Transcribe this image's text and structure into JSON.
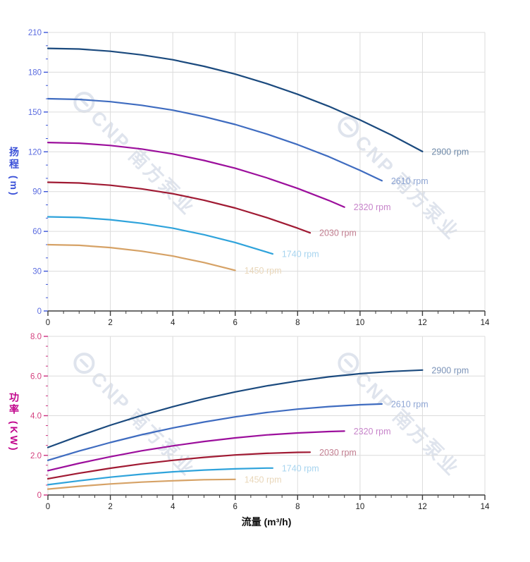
{
  "watermark": {
    "text": "CNP 南方泵业"
  },
  "chart_data": [
    {
      "id": "head",
      "type": "line",
      "title": "",
      "xlabel": "",
      "ylabel": "扬程 (m)",
      "xlim": [
        0,
        14
      ],
      "ylim": [
        0,
        210
      ],
      "grid": true,
      "legend_position": "curve-end-labels",
      "x_tick_values": [
        0,
        2,
        4,
        6,
        8,
        10,
        12,
        14
      ],
      "x_tick_labels": [
        "0",
        "2",
        "4",
        "6",
        "8",
        "10",
        "12",
        "14"
      ],
      "x_minor_step": 0.5,
      "y_tick_values": [
        0,
        30,
        60,
        90,
        120,
        150,
        180,
        210
      ],
      "y_tick_labels": [
        "0",
        "30",
        "60",
        "90",
        "120",
        "150",
        "180",
        "210"
      ],
      "y_minor_step": 10,
      "y_axis_color": "#3c55d8",
      "y_tick_label_color": "#5b6ce0",
      "x_axis_color": "#3d3d3d",
      "x_tick_label_color": "#1f1f1f",
      "grid_color": "#dcdcdc",
      "series": [
        {
          "name": "2900 rpm",
          "color": "#1b4a7e",
          "label_color": "#6e89a8",
          "x": [
            0,
            1,
            2,
            3,
            4,
            5,
            6,
            7,
            8,
            9,
            10,
            11,
            12
          ],
          "y": [
            198,
            197.5,
            195.8,
            193.1,
            189.4,
            184.5,
            178.6,
            171.5,
            163.4,
            154.3,
            144,
            132.7,
            120.2
          ]
        },
        {
          "name": "2610 rpm",
          "color": "#3f6cc0",
          "label_color": "#8fa6d4",
          "x": [
            0,
            1,
            2,
            3,
            4,
            5,
            6,
            7,
            8,
            9,
            10,
            10.7
          ],
          "y": [
            160,
            159.5,
            157.8,
            155.1,
            151.4,
            146.5,
            140.6,
            133.5,
            125.4,
            116.3,
            106,
            98.2
          ]
        },
        {
          "name": "2320 rpm",
          "color": "#9c0f9c",
          "label_color": "#c784ca",
          "x": [
            0,
            1,
            2,
            3,
            4,
            5,
            6,
            7,
            8,
            9,
            9.5
          ],
          "y": [
            127,
            126.5,
            124.8,
            122.1,
            118.4,
            113.5,
            107.6,
            100.5,
            92.4,
            83.3,
            78.3
          ]
        },
        {
          "name": "2030 rpm",
          "color": "#a01a33",
          "label_color": "#c27e90",
          "x": [
            0,
            1,
            2,
            3,
            4,
            5,
            6,
            7,
            8,
            8.4
          ],
          "y": [
            97,
            96.5,
            94.8,
            92.1,
            88.4,
            83.5,
            77.6,
            70.5,
            62.4,
            58.9
          ]
        },
        {
          "name": "1740 rpm",
          "color": "#2fa3db",
          "label_color": "#a7d4ef",
          "x": [
            0,
            1,
            2,
            3,
            4,
            5,
            6,
            7,
            7.2
          ],
          "y": [
            71,
            70.5,
            68.8,
            66.1,
            62.4,
            57.5,
            51.6,
            44.5,
            43
          ]
        },
        {
          "name": "1450 rpm",
          "color": "#d6a266",
          "label_color": "#e9d7ba",
          "x": [
            0,
            1,
            2,
            3,
            4,
            5,
            6
          ],
          "y": [
            50,
            49.5,
            47.8,
            45.1,
            41.4,
            36.5,
            30.6
          ]
        }
      ]
    },
    {
      "id": "power",
      "type": "line",
      "title": "",
      "xlabel": "流量 (m³/h)",
      "ylabel": "功率 (KW)",
      "xlim": [
        0,
        14
      ],
      "ylim": [
        0,
        8
      ],
      "grid": true,
      "legend_position": "curve-end-labels",
      "x_tick_values": [
        0,
        2,
        4,
        6,
        8,
        10,
        12,
        14
      ],
      "x_tick_labels": [
        "0",
        "2",
        "4",
        "6",
        "8",
        "10",
        "12",
        "14"
      ],
      "x_minor_step": 0.5,
      "y_tick_values": [
        0,
        2,
        4,
        6,
        8
      ],
      "y_tick_labels": [
        "0",
        "2.0",
        "4.0",
        "6.0",
        "8.0"
      ],
      "y_minor_step": 0.5,
      "y_axis_color": "#cc2f7f",
      "y_tick_label_color": "#d4417f",
      "x_axis_color": "#3d3d3d",
      "x_tick_label_color": "#1f1f1f",
      "grid_color": "#dcdcdc",
      "series": [
        {
          "name": "2900 rpm",
          "color": "#1b4a7e",
          "label_color": "#7b93b8",
          "x": [
            0,
            1,
            2,
            3,
            4,
            5,
            6,
            7,
            8,
            9,
            10,
            11,
            12
          ],
          "y": [
            2.4,
            2.98,
            3.52,
            4.01,
            4.45,
            4.85,
            5.2,
            5.5,
            5.75,
            5.96,
            6.12,
            6.23,
            6.3
          ]
        },
        {
          "name": "2610 rpm",
          "color": "#3f6cc0",
          "label_color": "#8fa6d4",
          "x": [
            0,
            1,
            2,
            3,
            4,
            5,
            6,
            7,
            8,
            9,
            10,
            10.7
          ],
          "y": [
            1.75,
            2.22,
            2.65,
            3.04,
            3.38,
            3.68,
            3.94,
            4.16,
            4.33,
            4.46,
            4.55,
            4.59
          ]
        },
        {
          "name": "2320 rpm",
          "color": "#9c0f9c",
          "label_color": "#c784ca",
          "x": [
            0,
            1,
            2,
            3,
            4,
            5,
            6,
            7,
            8,
            9,
            9.5
          ],
          "y": [
            1.23,
            1.6,
            1.93,
            2.23,
            2.48,
            2.7,
            2.88,
            3.03,
            3.13,
            3.2,
            3.22
          ]
        },
        {
          "name": "2030 rpm",
          "color": "#a01a33",
          "label_color": "#c27e90",
          "x": [
            0,
            1,
            2,
            3,
            4,
            5,
            6,
            7,
            8,
            8.4
          ],
          "y": [
            0.82,
            1.1,
            1.35,
            1.57,
            1.75,
            1.9,
            2.02,
            2.1,
            2.15,
            2.16
          ]
        },
        {
          "name": "1740 rpm",
          "color": "#2fa3db",
          "label_color": "#a7d4ef",
          "x": [
            0,
            1,
            2,
            3,
            4,
            5,
            6,
            7,
            7.2
          ],
          "y": [
            0.52,
            0.72,
            0.9,
            1.05,
            1.17,
            1.26,
            1.32,
            1.36,
            1.36
          ]
        },
        {
          "name": "1450 rpm",
          "color": "#d6a266",
          "label_color": "#e9d7ba",
          "x": [
            0,
            1,
            2,
            3,
            4,
            5,
            6
          ],
          "y": [
            0.3,
            0.44,
            0.56,
            0.65,
            0.72,
            0.77,
            0.79
          ]
        }
      ]
    }
  ]
}
